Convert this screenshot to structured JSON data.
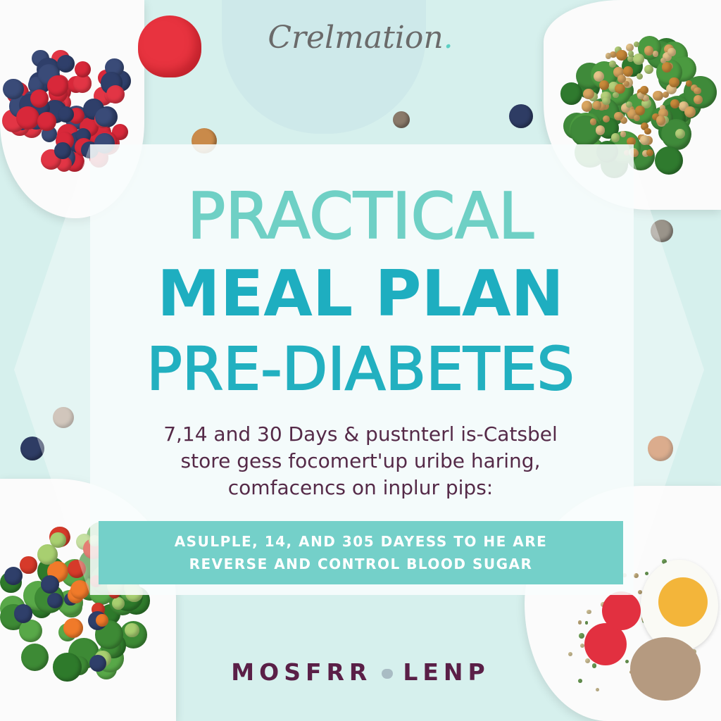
{
  "brand": {
    "name": "Crelmation",
    "dot": "."
  },
  "title": {
    "line1": "PRACTICAL",
    "line2": "MEAL PLAN",
    "line3": "PRE-DIABETES"
  },
  "subtitle": {
    "line1": "7,14 and 30 Days & pustnterl is-Catsbel",
    "line2": "store gess focomert'up uribe haring,",
    "line3": "comfacencs on inplur pips:"
  },
  "banner": {
    "line1": "ASULPLE, 14, AND 305 DAYESS TO HE ARE",
    "line2": "REVERSE AND CONTROL BLOOD SUGAR"
  },
  "author": {
    "first": "MOSFRR",
    "last": "LENP",
    "separator_icon": "heart-icon"
  },
  "colors": {
    "background": "#d6f0ed",
    "title_light": "#6fd0c5",
    "title_dark": "#1eaec0",
    "subtitle": "#552a48",
    "banner": "#74d0c9",
    "author": "#5a1f47"
  }
}
